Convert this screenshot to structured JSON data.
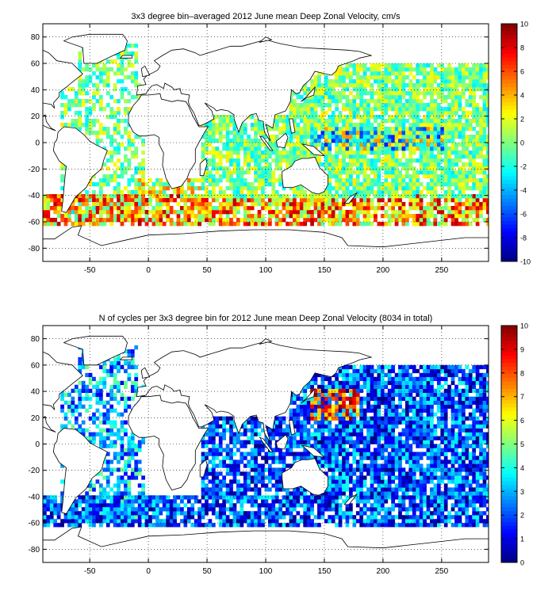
{
  "chart_data": [
    {
      "type": "heatmap",
      "title": "3x3 degree bin–averaged 2012 June mean Deep Zonal Velocity, cm/s",
      "xlabel": "",
      "ylabel": "",
      "xlim": [
        -90,
        290
      ],
      "ylim": [
        -90,
        90
      ],
      "x_ticks": [
        "-50",
        "0",
        "50",
        "100",
        "150",
        "200",
        "250"
      ],
      "y_ticks": [
        "80",
        "60",
        "40",
        "20",
        "0",
        "-20",
        "-40",
        "-60",
        "-80"
      ],
      "colorbar": {
        "range": [
          -10,
          10
        ],
        "ticks": [
          "10",
          "8",
          "6",
          "4",
          "2",
          "0",
          "-2",
          "-4",
          "-6",
          "-8",
          "-10"
        ],
        "colormap": "jet"
      },
      "grid": true,
      "bin_size_deg": 3,
      "regions": [
        {
          "lon": [
            -75,
            -5
          ],
          "lat": [
            -58,
            45
          ],
          "value": 0,
          "spread": 3,
          "density": 0.55
        },
        {
          "lon": [
            -60,
            -10
          ],
          "lat": [
            45,
            75
          ],
          "value": 0,
          "spread": 3,
          "density": 0.6
        },
        {
          "lon": [
            -10,
            50
          ],
          "lat": [
            -42,
            -28
          ],
          "value": 2,
          "spread": 4,
          "density": 0.65
        },
        {
          "lon": [
            -90,
            290
          ],
          "lat": [
            -63,
            -40
          ],
          "value": 4,
          "spread": 5,
          "density": 0.8
        },
        {
          "lon": [
            45,
            120
          ],
          "lat": [
            -40,
            20
          ],
          "value": 0,
          "spread": 3,
          "density": 0.75
        },
        {
          "lon": [
            120,
            290
          ],
          "lat": [
            -40,
            60
          ],
          "value": 0,
          "spread": 3,
          "density": 0.85
        },
        {
          "lon": [
            140,
            250
          ],
          "lat": [
            -5,
            12
          ],
          "value": -1,
          "spread": 6,
          "density": 0.9
        }
      ]
    },
    {
      "type": "heatmap",
      "title": "N of cycles per 3x3 degree bin for 2012 June mean Deep Zonal Velocity (8034 in total)",
      "xlabel": "",
      "ylabel": "",
      "xlim": [
        -90,
        290
      ],
      "ylim": [
        -90,
        90
      ],
      "x_ticks": [
        "-50",
        "0",
        "50",
        "100",
        "150",
        "200",
        "250"
      ],
      "y_ticks": [
        "80",
        "60",
        "40",
        "20",
        "0",
        "-20",
        "-40",
        "-60",
        "-80"
      ],
      "colorbar": {
        "range": [
          0,
          10
        ],
        "ticks": [
          "10",
          "9",
          "8",
          "7",
          "6",
          "5",
          "4",
          "3",
          "2",
          "1",
          "0"
        ],
        "colormap": "jet"
      },
      "grid": true,
      "bin_size_deg": 3,
      "regions": [
        {
          "lon": [
            -75,
            -5
          ],
          "lat": [
            -58,
            45
          ],
          "value": 3,
          "spread": 2,
          "density": 0.55
        },
        {
          "lon": [
            -60,
            -10
          ],
          "lat": [
            45,
            75
          ],
          "value": 3,
          "spread": 2,
          "density": 0.6
        },
        {
          "lon": [
            -90,
            290
          ],
          "lat": [
            -63,
            -40
          ],
          "value": 2,
          "spread": 2,
          "density": 0.8
        },
        {
          "lon": [
            45,
            120
          ],
          "lat": [
            -40,
            20
          ],
          "value": 2,
          "spread": 2,
          "density": 0.75
        },
        {
          "lon": [
            120,
            290
          ],
          "lat": [
            -40,
            60
          ],
          "value": 2,
          "spread": 2,
          "density": 0.85
        },
        {
          "lon": [
            140,
            180
          ],
          "lat": [
            20,
            40
          ],
          "value": 8,
          "spread": 2,
          "density": 0.6
        }
      ]
    }
  ]
}
